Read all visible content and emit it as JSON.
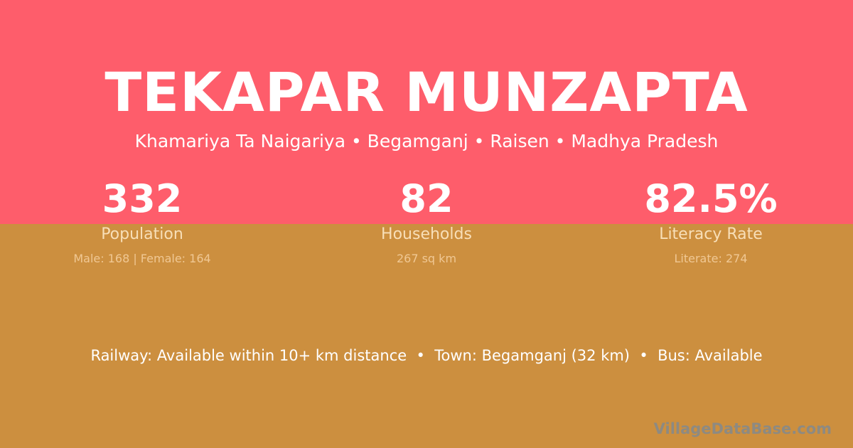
{
  "header": {
    "title": "TEKAPAR MUNZAPTA",
    "location": "Khamariya Ta Naigariya • Begamganj • Raisen • Madhya Pradesh"
  },
  "stats": [
    {
      "value": "332",
      "label": "Population",
      "detail": "Male: 168 | Female: 164"
    },
    {
      "value": "82",
      "label": "Households",
      "detail": "267 sq km"
    },
    {
      "value": "82.5%",
      "label": "Literacy Rate",
      "detail": "Literate: 274"
    }
  ],
  "facilities": "Railway: Available within 10+ km distance  •  Town: Begamganj (32 km)  •  Bus: Available",
  "brand": "VillageDataBase.com",
  "colors": {
    "top": "#fe5d6b",
    "bottom": "#cc8f3f"
  }
}
